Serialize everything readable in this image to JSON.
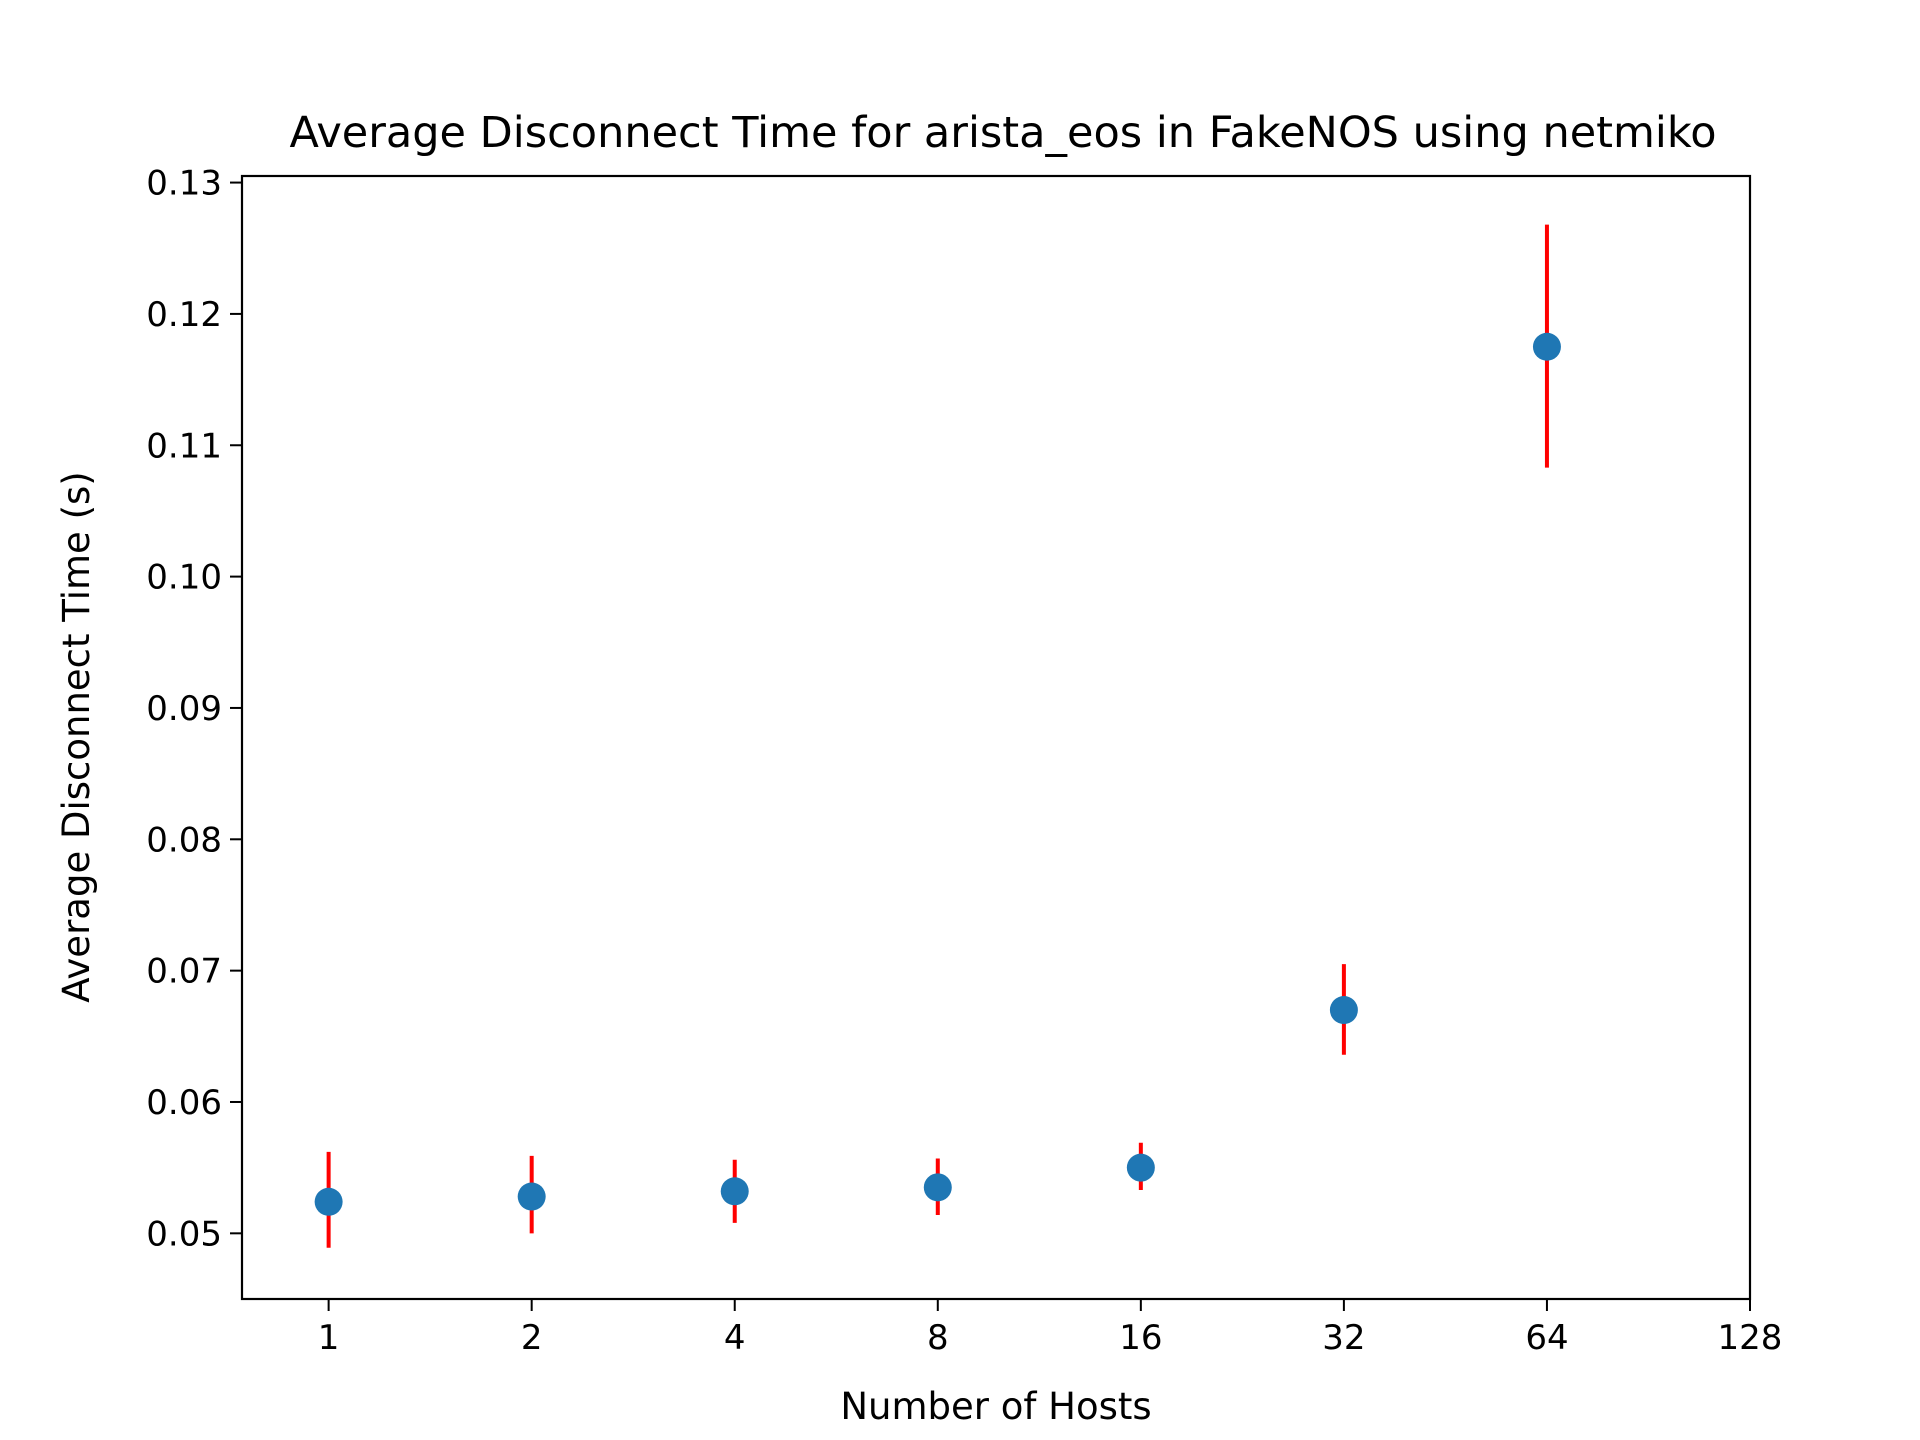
{
  "chart_data": {
    "type": "scatter",
    "title": "Average Disconnect Time for arista_eos in FakeNOS using netmiko",
    "xlabel": "Number of Hosts",
    "ylabel": "Average Disconnect Time (s)",
    "x_scale": "log2",
    "xlim": [
      0.744,
      128
    ],
    "ylim": [
      0.045,
      0.1305
    ],
    "x_ticks": [
      "1",
      "2",
      "4",
      "8",
      "16",
      "32",
      "64",
      "128"
    ],
    "y_ticks": [
      "0.05",
      "0.06",
      "0.07",
      "0.08",
      "0.09",
      "0.10",
      "0.11",
      "0.12",
      "0.13"
    ],
    "grid": false,
    "marker_color": "#1f77b4",
    "errorbar_color": "#ff0000",
    "series": [
      {
        "points": [
          {
            "x": 1,
            "y": 0.0524,
            "low": 0.0489,
            "high": 0.0562
          },
          {
            "x": 2,
            "y": 0.0528,
            "low": 0.05,
            "high": 0.0559
          },
          {
            "x": 4,
            "y": 0.0532,
            "low": 0.0508,
            "high": 0.0556
          },
          {
            "x": 8,
            "y": 0.0535,
            "low": 0.0514,
            "high": 0.0557
          },
          {
            "x": 16,
            "y": 0.055,
            "low": 0.0533,
            "high": 0.0569
          },
          {
            "x": 32,
            "y": 0.067,
            "low": 0.0636,
            "high": 0.0705
          },
          {
            "x": 64,
            "y": 0.1175,
            "low": 0.1083,
            "high": 0.1268
          }
        ]
      }
    ]
  }
}
